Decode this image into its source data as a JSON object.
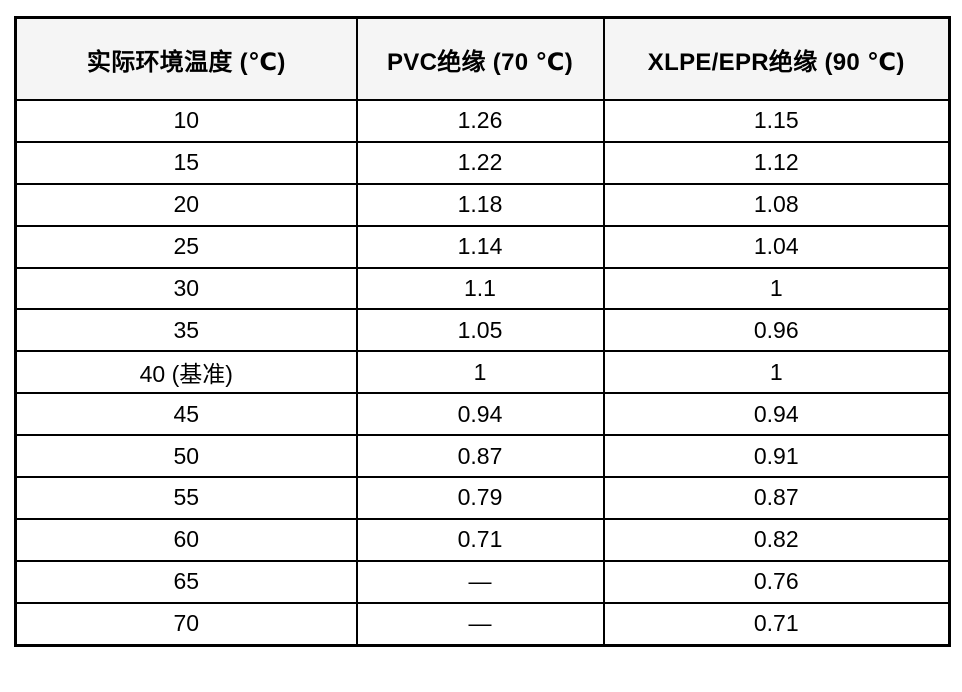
{
  "table": {
    "headers": [
      "实际环境温度 (℃)",
      "PVC绝缘 (70 ℃)",
      "XLPE/EPR绝缘 (90 ℃)"
    ],
    "rows": [
      [
        "10",
        "1.26",
        "1.15"
      ],
      [
        "15",
        "1.22",
        "1.12"
      ],
      [
        "20",
        "1.18",
        "1.08"
      ],
      [
        "25",
        "1.14",
        "1.04"
      ],
      [
        "30",
        "1.1",
        "1"
      ],
      [
        "35",
        "1.05",
        "0.96"
      ],
      [
        "40 (基准)",
        "1",
        "1"
      ],
      [
        "45",
        "0.94",
        "0.94"
      ],
      [
        "50",
        "0.87",
        "0.91"
      ],
      [
        "55",
        "0.79",
        "0.87"
      ],
      [
        "60",
        "0.71",
        "0.82"
      ],
      [
        "65",
        "—",
        "0.76"
      ],
      [
        "70",
        "—",
        "0.71"
      ]
    ],
    "missing_value_symbol": "—"
  },
  "colors": {
    "border": "#000000",
    "header_background": "#f5f5f5",
    "body_background": "#ffffff",
    "text": "#000000"
  },
  "chart_data": {
    "type": "table",
    "title": "",
    "columns": [
      "实际环境温度 (℃)",
      "PVC绝缘 (70 ℃)",
      "XLPE/EPR绝缘 (90 ℃)"
    ],
    "x": [
      10,
      15,
      20,
      25,
      30,
      35,
      40,
      45,
      50,
      55,
      60,
      65,
      70
    ],
    "series": [
      {
        "name": "PVC绝缘 (70 ℃)",
        "values": [
          1.26,
          1.22,
          1.18,
          1.14,
          1.1,
          1.05,
          1,
          0.94,
          0.87,
          0.79,
          0.71,
          null,
          null
        ]
      },
      {
        "name": "XLPE/EPR绝缘 (90 ℃)",
        "values": [
          1.15,
          1.12,
          1.08,
          1.04,
          1,
          0.96,
          1,
          0.94,
          0.91,
          0.87,
          0.82,
          0.76,
          0.71
        ]
      }
    ],
    "annotations": [
      "40 (基准)"
    ]
  }
}
